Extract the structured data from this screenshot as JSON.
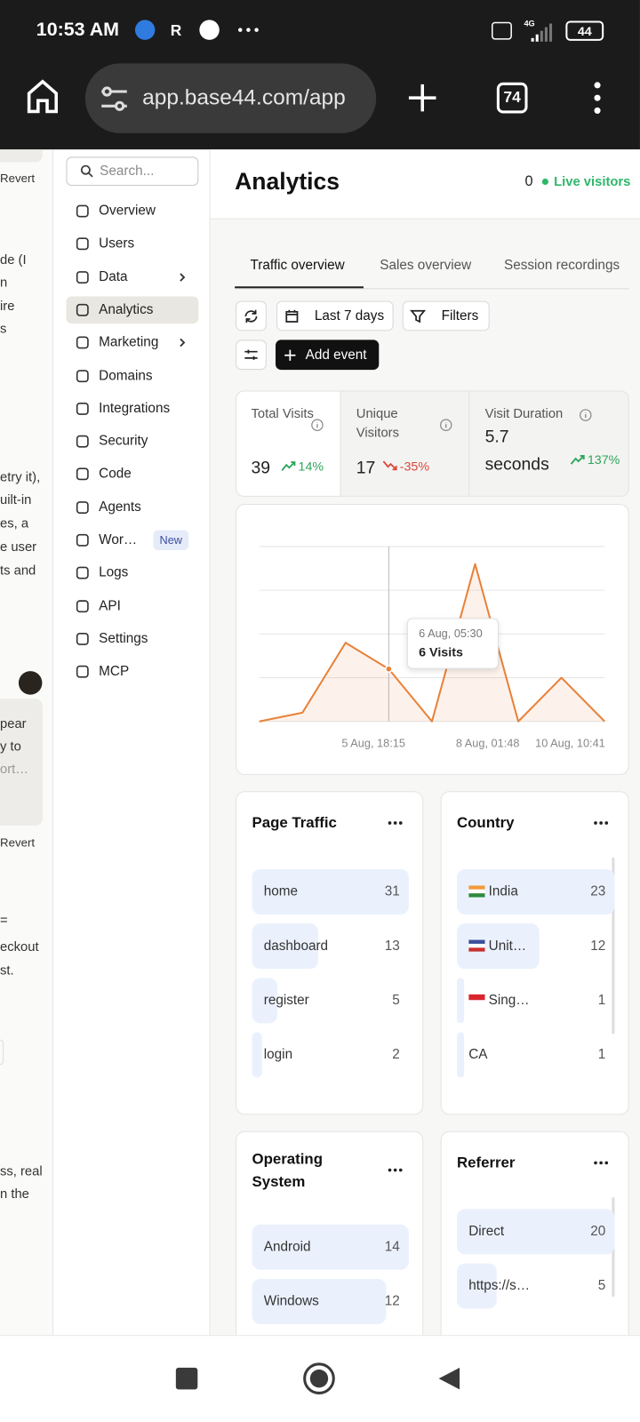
{
  "status_bar": {
    "time": "10:53 AM",
    "network": "4G",
    "battery": "44"
  },
  "browser": {
    "url": "app.base44.com/app",
    "tab_count": "74"
  },
  "chat_fragments": [
    "Revert",
    "de (I",
    "n",
    "ire",
    "s",
    "etry it),",
    "uilt-in",
    "es, a",
    "e user",
    "ts and",
    "pear",
    "y to",
    "ort…",
    "Revert",
    "=",
    "eckout",
    "st.",
    "ss, real",
    "n the"
  ],
  "sidebar": {
    "search_placeholder": "Search...",
    "nav": [
      {
        "label": "Overview"
      },
      {
        "label": "Users"
      },
      {
        "label": "Data",
        "expandable": true
      },
      {
        "label": "Analytics",
        "active": true
      },
      {
        "label": "Marketing",
        "expandable": true
      },
      {
        "label": "Domains"
      },
      {
        "label": "Integrations"
      },
      {
        "label": "Security"
      },
      {
        "label": "Code"
      },
      {
        "label": "Agents"
      },
      {
        "label": "Wor…",
        "badge": "New"
      },
      {
        "label": "Logs"
      },
      {
        "label": "API"
      },
      {
        "label": "Settings"
      },
      {
        "label": "MCP"
      }
    ]
  },
  "header": {
    "title": "Analytics",
    "live_count": 0,
    "live_label": "Live visitors"
  },
  "tabs": {
    "items": [
      "Traffic overview",
      "Sales overview",
      "Session recordings"
    ],
    "active": 0
  },
  "toolbar": {
    "date_range": "Last 7 days",
    "filters": "Filters",
    "add_event": "Add event"
  },
  "stats": [
    {
      "label": "Total Visits",
      "value": 39,
      "change": "14%",
      "trend": "up"
    },
    {
      "label": "Unique Visitors",
      "value": 17,
      "change": "-35%",
      "trend": "down"
    },
    {
      "label": "Visit Duration",
      "value": "5.7 seconds",
      "change": "137%",
      "trend": "up"
    }
  ],
  "chart_data": {
    "type": "line",
    "categories": [
      null,
      null,
      null,
      "6 Aug, 05:30",
      null,
      null,
      null,
      null,
      null
    ],
    "values": [
      0,
      1,
      9,
      6,
      0,
      18,
      0,
      5,
      0
    ],
    "color": "#e8823a",
    "ylim": [
      0,
      20
    ],
    "yticks": [
      0,
      5,
      10,
      15,
      20
    ],
    "grid": true,
    "xtick_labels": [
      "5 Aug, 18:15",
      "8 Aug, 01:48",
      "10 Aug, 10:41"
    ],
    "tooltip": "6 Visits"
  },
  "panels": [
    {
      "title": "Page Traffic",
      "rows": [
        {
          "label": "home",
          "value": 31
        },
        {
          "label": "dashboard",
          "value": 13
        },
        {
          "label": "register",
          "value": 5
        },
        {
          "label": "login",
          "value": 2
        }
      ]
    },
    {
      "title": "Country",
      "scroll": true,
      "rows": [
        {
          "label": "India",
          "value": 23,
          "flag": [
            "#f29a3a",
            "#ffffff",
            "#2e8b3d"
          ]
        },
        {
          "label": "Unit…",
          "value": 12,
          "flag": [
            "#3c4f9a",
            "#ffffff",
            "#c8312f"
          ]
        },
        {
          "label": "Sing…",
          "value": 1,
          "flag": [
            "#d8262e",
            "#ffffff"
          ]
        },
        {
          "label": "CA",
          "value": 1
        }
      ]
    },
    {
      "title": "Operating System",
      "rows": [
        {
          "label": "Android",
          "value": 14
        },
        {
          "label": "Windows",
          "value": 12
        }
      ]
    },
    {
      "title": "Referrer",
      "scroll": true,
      "rows": [
        {
          "label": "Direct",
          "value": 20
        },
        {
          "label": "https://s…",
          "value": 5
        }
      ]
    }
  ]
}
